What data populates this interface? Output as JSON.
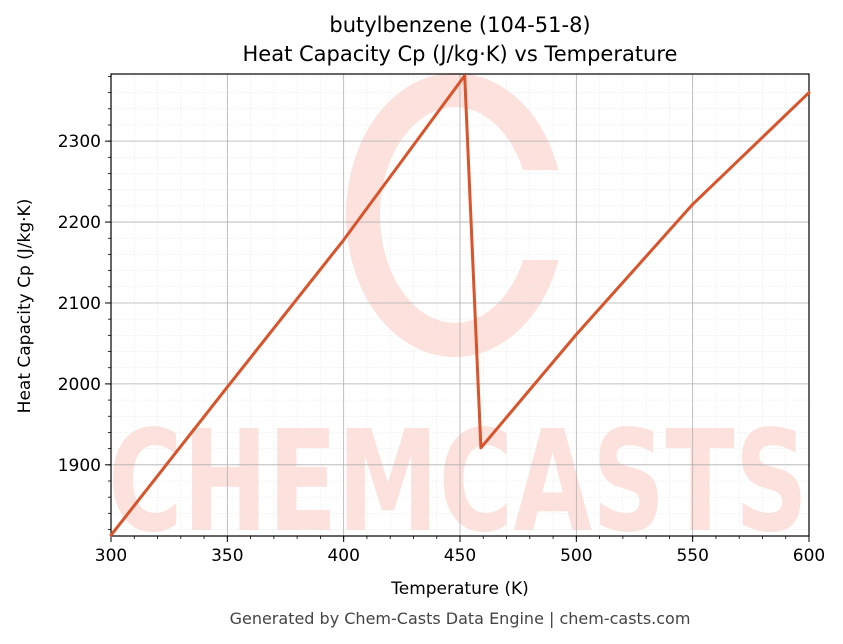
{
  "chart_data": {
    "type": "line",
    "title": "butylbenzene (104-51-8)",
    "subtitle": "Heat Capacity Cp (J/kg·K) vs Temperature",
    "xlabel": "Temperature (K)",
    "ylabel": "Heat Capacity Cp (J/kg·K)",
    "xlim": [
      300,
      600
    ],
    "ylim": [
      1812,
      2383
    ],
    "x_ticks": [
      300,
      350,
      400,
      450,
      500,
      550,
      600
    ],
    "y_ticks": [
      1900,
      2000,
      2100,
      2200,
      2300
    ],
    "grid": true,
    "series": [
      {
        "color": "#d9532b",
        "x": [
          300,
          350,
          400,
          452,
          459,
          500,
          550,
          600
        ],
        "y": [
          1813,
          1996,
          2178,
          2381,
          1921,
          2061,
          2222,
          2360
        ]
      }
    ]
  },
  "footer": "Generated by Chem-Casts Data Engine | chem-casts.com",
  "watermark": {
    "text": "CHEMCASTS",
    "color": "#fde1dc"
  }
}
